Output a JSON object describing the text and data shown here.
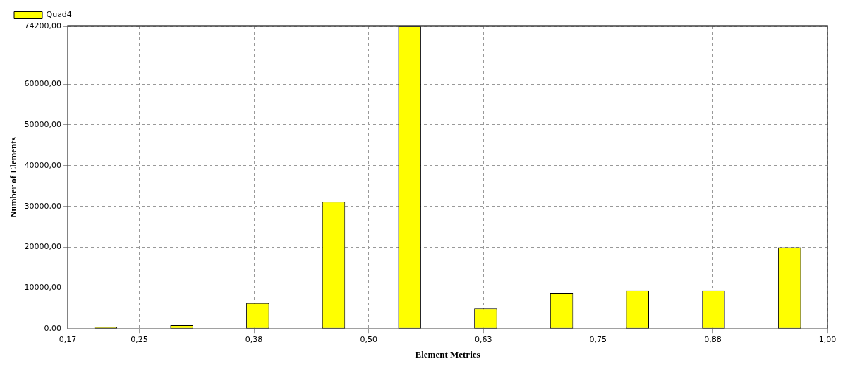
{
  "chart_data": {
    "type": "histogram",
    "xlabel": "Element Metrics",
    "ylabel": "Number of Elements",
    "bins": [
      0.172,
      0.2548,
      0.3376,
      0.4204,
      0.5032,
      0.586,
      0.6688,
      0.7516,
      0.8344,
      0.9172,
      1.0
    ],
    "series": [
      {
        "name": "Quad4",
        "color": "#ffff00",
        "values": [
          500,
          900,
          6300,
          31100,
          74200,
          5000,
          8700,
          9400,
          9400,
          20000
        ]
      }
    ],
    "xlim": [
      0.172,
      1.0
    ],
    "xticks": [
      {
        "value": 0.172,
        "label": "0,17"
      },
      {
        "value": 0.25,
        "label": "0,25"
      },
      {
        "value": 0.375,
        "label": "0,38"
      },
      {
        "value": 0.5,
        "label": "0,50"
      },
      {
        "value": 0.625,
        "label": "0,63"
      },
      {
        "value": 0.75,
        "label": "0,75"
      },
      {
        "value": 0.875,
        "label": "0,88"
      },
      {
        "value": 1.0,
        "label": "1,00"
      }
    ],
    "ylim": [
      0,
      74200
    ],
    "yticks": [
      {
        "value": 0,
        "label": "0,00"
      },
      {
        "value": 10000,
        "label": "10000,00"
      },
      {
        "value": 20000,
        "label": "20000,00"
      },
      {
        "value": 30000,
        "label": "30000,00"
      },
      {
        "value": 40000,
        "label": "40000,00"
      },
      {
        "value": 50000,
        "label": "50000,00"
      },
      {
        "value": 60000,
        "label": "60000,00"
      },
      {
        "value": 74200,
        "label": "74200,00"
      }
    ],
    "grid": true,
    "legend": "top left"
  }
}
